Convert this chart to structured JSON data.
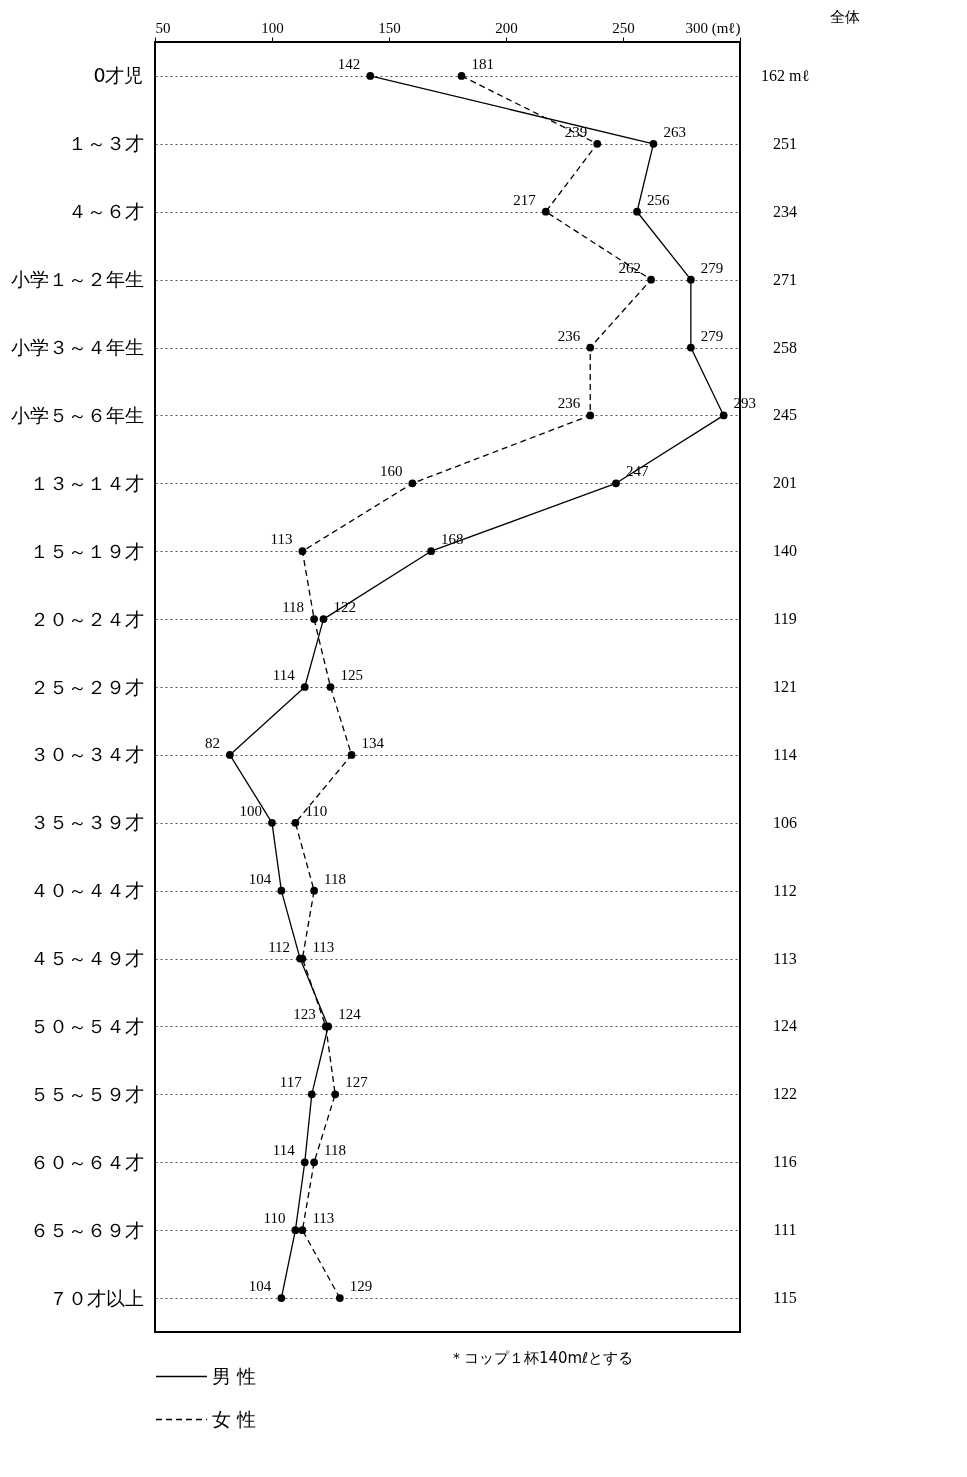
{
  "chart_data": {
    "type": "line",
    "orientation": "horizontal",
    "categories": [
      "0才児",
      "１～３才",
      "４～６才",
      "小学１～２年生",
      "小学３～４年生",
      "小学５～６年生",
      "１３～１４才",
      "１５～１９才",
      "２０～２４才",
      "２５～２９才",
      "３０～３４才",
      "３５～３９才",
      "４０～４４才",
      "４５～４９才",
      "５０～５４才",
      "５５～５９才",
      "６０～６４才",
      "６５～６９才",
      "７０才以上"
    ],
    "series": [
      {
        "name": "男 性",
        "color": "#000000",
        "line_style": "solid",
        "values": [
          142,
          263,
          256,
          279,
          279,
          293,
          247,
          168,
          122,
          114,
          82,
          100,
          104,
          112,
          124,
          117,
          114,
          110,
          104
        ]
      },
      {
        "name": "女 性",
        "color": "#000000",
        "line_style": "dashed",
        "values": [
          181,
          239,
          217,
          262,
          236,
          236,
          160,
          113,
          118,
          125,
          134,
          110,
          118,
          113,
          123,
          127,
          118,
          113,
          129
        ]
      }
    ],
    "xlim": [
      50,
      300
    ],
    "xticks": [
      50,
      100,
      150,
      200,
      250,
      {
        "value": 300,
        "label": "300 (mℓ)"
      }
    ],
    "data_labels": true,
    "marker": "circle",
    "grid": "y",
    "legend": "bottom left",
    "annotations": [
      "全体",
      "162 mℓ",
      "251",
      "234",
      "271",
      "258",
      "245",
      "201",
      "140",
      "119",
      "121",
      "114",
      "106",
      "112",
      "113",
      "124",
      "122",
      "116",
      "111",
      "115",
      "＊コップ１杯140mℓとする"
    ]
  }
}
